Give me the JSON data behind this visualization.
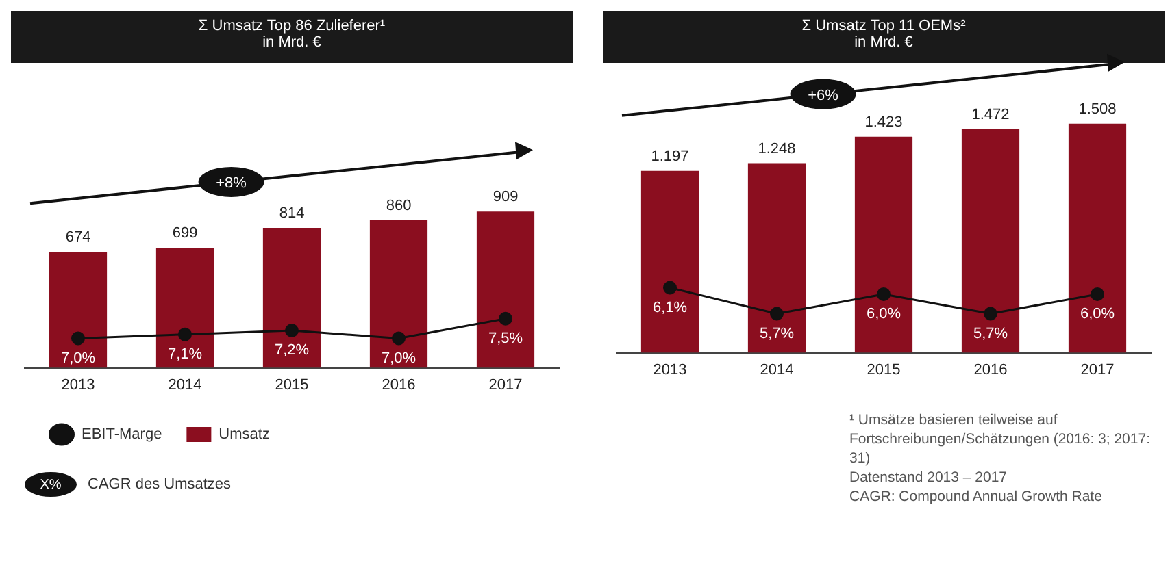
{
  "chart_data": [
    {
      "type": "bar",
      "title": "Σ Umsatz Top 86 Zulieferer¹",
      "subtitle": "in Mrd. €",
      "categories": [
        "2013",
        "2014",
        "2015",
        "2016",
        "2017"
      ],
      "series": [
        {
          "name": "Umsatz",
          "color": "#8b0e1f",
          "values": [
            674,
            699,
            814,
            860,
            909
          ],
          "value_labels": [
            "674",
            "699",
            "814",
            "860",
            "909"
          ]
        },
        {
          "name": "EBIT-Marge",
          "type": "line",
          "axis": "y2",
          "color": "#111111",
          "values": [
            7.0,
            7.1,
            7.2,
            7.0,
            7.5
          ],
          "value_labels": [
            "7,0%",
            "7,1%",
            "7,2%",
            "7,0%",
            "7,5%"
          ]
        }
      ],
      "tick_labels": "x",
      "marker": "circle",
      "legend": "bottom",
      "annotations": [
        "+8%",
        "X%",
        "CAGR des Umsatzes"
      ]
    },
    {
      "type": "bar",
      "title": "Σ Umsatz Top 11 OEMs²",
      "subtitle": "in Mrd. €",
      "categories": [
        "2013",
        "2014",
        "2015",
        "2016",
        "2017"
      ],
      "series": [
        {
          "color": "#8b0e1f",
          "values": [
            1197,
            1248,
            1423,
            1472,
            1508
          ],
          "value_labels": [
            "1.197",
            "1.248",
            "1.423",
            "1.472",
            "1.508"
          ]
        },
        {
          "type": "line",
          "axis": "y2",
          "color": "#111111",
          "values": [
            6.1,
            5.7,
            6.0,
            5.7,
            6.0
          ],
          "value_labels": [
            "6,1%",
            "5,7%",
            "6,0%",
            "5,7%",
            "6,0%"
          ]
        }
      ],
      "tick_labels": "x",
      "marker": "circle",
      "annotations": [
        "+6%",
        "¹ Umsätze basieren teilweise auf Fortschreibungen/Schätzungen (2016: 3; 2017: 31)",
        "Datenstand 2013 – 2017",
        "CAGR: Compound Annual Growth Rate"
      ]
    }
  ]
}
